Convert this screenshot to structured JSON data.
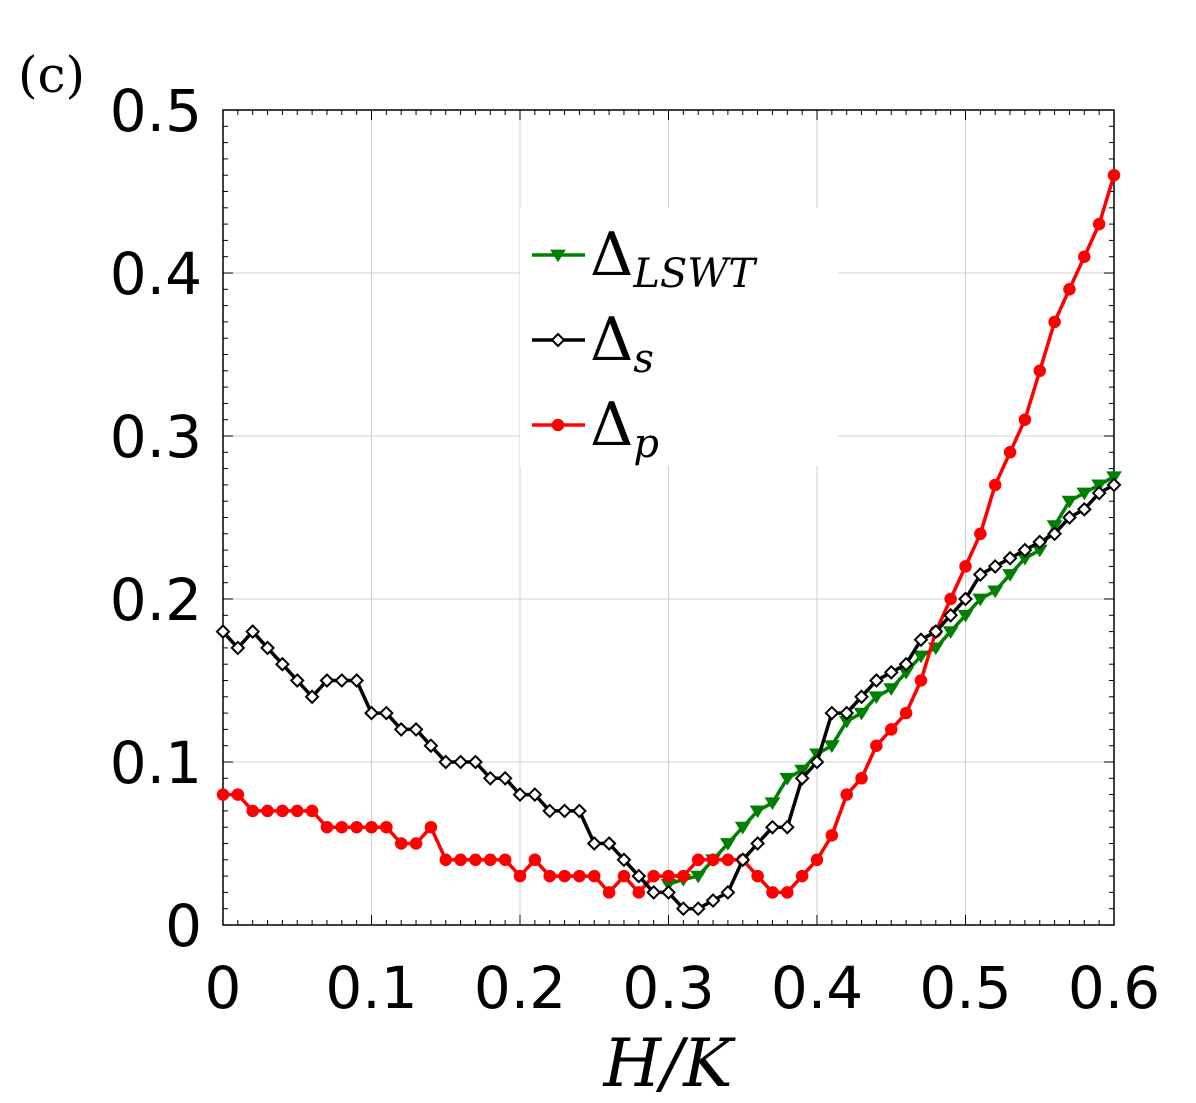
{
  "panel_label": "(c)",
  "chart_data": {
    "type": "line",
    "title": "",
    "xlabel": "H/K",
    "ylabel": "",
    "xlim": [
      0,
      0.6
    ],
    "ylim": [
      0,
      0.5
    ],
    "grid": true,
    "legend": {
      "placement": "upper-center"
    },
    "x_ticks": [
      "0",
      "0.1",
      "0.2",
      "0.3",
      "0.4",
      "0.5",
      "0.6"
    ],
    "y_ticks": [
      "0",
      "0.1",
      "0.2",
      "0.3",
      "0.4",
      "0.5"
    ],
    "series": [
      {
        "name": "Δ_LSWT",
        "label_main": "Δ",
        "label_sub": "LSWT",
        "color": "#008000",
        "marker": "triangle",
        "x": [
          0.3,
          0.31,
          0.32,
          0.33,
          0.34,
          0.35,
          0.36,
          0.37,
          0.38,
          0.39,
          0.4,
          0.41,
          0.42,
          0.43,
          0.44,
          0.45,
          0.46,
          0.47,
          0.48,
          0.49,
          0.5,
          0.51,
          0.52,
          0.53,
          0.54,
          0.55,
          0.56,
          0.57,
          0.58,
          0.59,
          0.6
        ],
        "y": [
          0.025,
          0.028,
          0.03,
          0.04,
          0.05,
          0.06,
          0.07,
          0.075,
          0.09,
          0.095,
          0.105,
          0.11,
          0.125,
          0.13,
          0.14,
          0.145,
          0.155,
          0.165,
          0.17,
          0.18,
          0.19,
          0.2,
          0.205,
          0.215,
          0.225,
          0.23,
          0.245,
          0.26,
          0.265,
          0.27,
          0.275
        ]
      },
      {
        "name": "Δ_s",
        "label_main": "Δ",
        "label_sub": "s",
        "color": "#000000",
        "marker": "diamond-open",
        "x": [
          0.0,
          0.01,
          0.02,
          0.03,
          0.04,
          0.05,
          0.06,
          0.07,
          0.08,
          0.09,
          0.1,
          0.11,
          0.12,
          0.13,
          0.14,
          0.15,
          0.16,
          0.17,
          0.18,
          0.19,
          0.2,
          0.21,
          0.22,
          0.23,
          0.24,
          0.25,
          0.26,
          0.27,
          0.28,
          0.29,
          0.3,
          0.31,
          0.32,
          0.33,
          0.34,
          0.35,
          0.36,
          0.37,
          0.38,
          0.39,
          0.4,
          0.41,
          0.42,
          0.43,
          0.44,
          0.45,
          0.46,
          0.47,
          0.48,
          0.49,
          0.5,
          0.51,
          0.52,
          0.53,
          0.54,
          0.55,
          0.56,
          0.57,
          0.58,
          0.59,
          0.6
        ],
        "y": [
          0.18,
          0.17,
          0.18,
          0.17,
          0.16,
          0.15,
          0.14,
          0.15,
          0.15,
          0.15,
          0.13,
          0.13,
          0.12,
          0.12,
          0.11,
          0.1,
          0.1,
          0.1,
          0.09,
          0.09,
          0.08,
          0.08,
          0.07,
          0.07,
          0.07,
          0.05,
          0.05,
          0.04,
          0.03,
          0.02,
          0.02,
          0.01,
          0.01,
          0.015,
          0.02,
          0.04,
          0.05,
          0.06,
          0.06,
          0.09,
          0.1,
          0.13,
          0.13,
          0.14,
          0.15,
          0.155,
          0.16,
          0.175,
          0.18,
          0.19,
          0.2,
          0.215,
          0.22,
          0.225,
          0.23,
          0.235,
          0.24,
          0.25,
          0.255,
          0.265,
          0.27
        ]
      },
      {
        "name": "Δ_p",
        "label_main": "Δ",
        "label_sub": "p",
        "color": "#ff0000",
        "marker": "circle",
        "x": [
          0.0,
          0.01,
          0.02,
          0.03,
          0.04,
          0.05,
          0.06,
          0.07,
          0.08,
          0.09,
          0.1,
          0.11,
          0.12,
          0.13,
          0.14,
          0.15,
          0.16,
          0.17,
          0.18,
          0.19,
          0.2,
          0.21,
          0.22,
          0.23,
          0.24,
          0.25,
          0.26,
          0.27,
          0.28,
          0.29,
          0.3,
          0.31,
          0.32,
          0.33,
          0.34,
          0.35,
          0.36,
          0.37,
          0.38,
          0.39,
          0.4,
          0.41,
          0.42,
          0.43,
          0.44,
          0.45,
          0.46,
          0.47,
          0.48,
          0.49,
          0.5,
          0.51,
          0.52,
          0.53,
          0.54,
          0.55,
          0.56,
          0.57,
          0.58,
          0.59,
          0.6
        ],
        "y": [
          0.08,
          0.08,
          0.07,
          0.07,
          0.07,
          0.07,
          0.07,
          0.06,
          0.06,
          0.06,
          0.06,
          0.06,
          0.05,
          0.05,
          0.06,
          0.04,
          0.04,
          0.04,
          0.04,
          0.04,
          0.03,
          0.04,
          0.03,
          0.03,
          0.03,
          0.03,
          0.02,
          0.03,
          0.02,
          0.03,
          0.03,
          0.03,
          0.04,
          0.04,
          0.04,
          0.04,
          0.03,
          0.02,
          0.02,
          0.03,
          0.04,
          0.055,
          0.08,
          0.09,
          0.11,
          0.12,
          0.13,
          0.15,
          0.18,
          0.2,
          0.22,
          0.24,
          0.27,
          0.29,
          0.31,
          0.34,
          0.37,
          0.39,
          0.41,
          0.43,
          0.46
        ]
      }
    ]
  }
}
